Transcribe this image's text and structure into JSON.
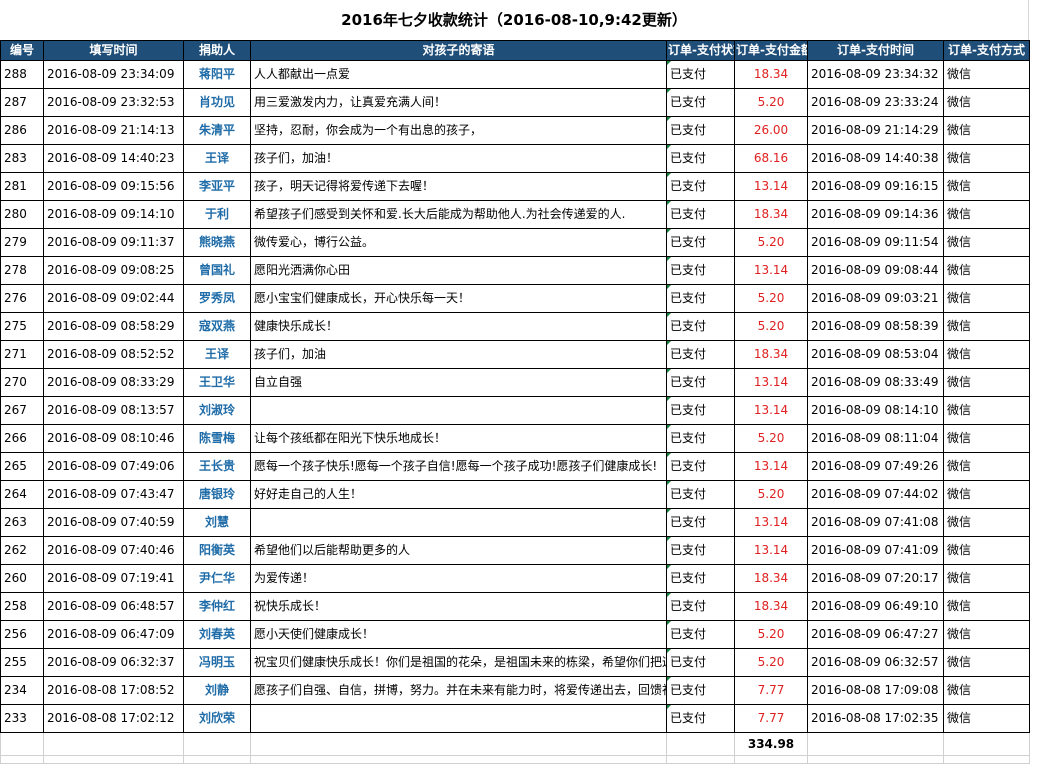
{
  "title": "2016年七夕收款统计（2016-08-10,9:42更新）",
  "columns": [
    "编号",
    "填写时间",
    "捐助人",
    "对孩子的寄语",
    "订单-支付状态",
    "订单-支付金额",
    "订单-支付时间",
    "订单-支付方式"
  ],
  "rows": [
    {
      "id": "288",
      "fill_time": "2016-08-09 23:34:09",
      "donor": "蒋阳平",
      "message": "人人都献出一点爱",
      "status": "已支付",
      "amount": "18.34",
      "pay_time": "2016-08-09 23:34:32",
      "method": "微信"
    },
    {
      "id": "287",
      "fill_time": "2016-08-09 23:32:53",
      "donor": "肖功见",
      "message": "用三爱激发内力，让真爱充满人间！",
      "status": "已支付",
      "amount": "5.20",
      "pay_time": "2016-08-09 23:33:24",
      "method": "微信"
    },
    {
      "id": "286",
      "fill_time": "2016-08-09 21:14:13",
      "donor": "朱清平",
      "message": "坚持，忍耐，你会成为一个有出息的孩子，",
      "status": "已支付",
      "amount": "26.00",
      "pay_time": "2016-08-09 21:14:29",
      "method": "微信"
    },
    {
      "id": "283",
      "fill_time": "2016-08-09 14:40:23",
      "donor": "王译",
      "message": "孩子们，加油！",
      "status": "已支付",
      "amount": "68.16",
      "pay_time": "2016-08-09 14:40:38",
      "method": "微信"
    },
    {
      "id": "281",
      "fill_time": "2016-08-09 09:15:56",
      "donor": "李亚平",
      "message": "孩子，明天记得将爱传递下去喔！",
      "status": "已支付",
      "amount": "13.14",
      "pay_time": "2016-08-09 09:16:15",
      "method": "微信"
    },
    {
      "id": "280",
      "fill_time": "2016-08-09 09:14:10",
      "donor": "于利",
      "message": "希望孩子们感受到关怀和爱.长大后能成为帮助他人.为社会传递爱的人.",
      "status": "已支付",
      "amount": "18.34",
      "pay_time": "2016-08-09 09:14:36",
      "method": "微信"
    },
    {
      "id": "279",
      "fill_time": "2016-08-09 09:11:37",
      "donor": "熊晓燕",
      "message": "微传爱心，博行公益。",
      "status": "已支付",
      "amount": "5.20",
      "pay_time": "2016-08-09 09:11:54",
      "method": "微信"
    },
    {
      "id": "278",
      "fill_time": "2016-08-09 09:08:25",
      "donor": "曾国礼",
      "message": "愿阳光洒满你心田",
      "status": "已支付",
      "amount": "13.14",
      "pay_time": "2016-08-09 09:08:44",
      "method": "微信"
    },
    {
      "id": "276",
      "fill_time": "2016-08-09 09:02:44",
      "donor": "罗秀凤",
      "message": "愿小宝宝们健康成长，开心快乐每一天！",
      "status": "已支付",
      "amount": "5.20",
      "pay_time": "2016-08-09 09:03:21",
      "method": "微信"
    },
    {
      "id": "275",
      "fill_time": "2016-08-09 08:58:29",
      "donor": "寇双燕",
      "message": "健康快乐成长！",
      "status": "已支付",
      "amount": "5.20",
      "pay_time": "2016-08-09 08:58:39",
      "method": "微信"
    },
    {
      "id": "271",
      "fill_time": "2016-08-09 08:52:52",
      "donor": "王译",
      "message": "孩子们，加油",
      "status": "已支付",
      "amount": "18.34",
      "pay_time": "2016-08-09 08:53:04",
      "method": "微信"
    },
    {
      "id": "270",
      "fill_time": "2016-08-09 08:33:29",
      "donor": "王卫华",
      "message": "自立自强",
      "status": "已支付",
      "amount": "13.14",
      "pay_time": "2016-08-09 08:33:49",
      "method": "微信"
    },
    {
      "id": "267",
      "fill_time": "2016-08-09 08:13:57",
      "donor": "刘淑玲",
      "message": "",
      "status": "已支付",
      "amount": "13.14",
      "pay_time": "2016-08-09 08:14:10",
      "method": "微信"
    },
    {
      "id": "266",
      "fill_time": "2016-08-09 08:10:46",
      "donor": "陈雪梅",
      "message": "让每个孩纸都在阳光下快乐地成长！",
      "status": "已支付",
      "amount": "5.20",
      "pay_time": "2016-08-09 08:11:04",
      "method": "微信"
    },
    {
      "id": "265",
      "fill_time": "2016-08-09 07:49:06",
      "donor": "王长贵",
      "message": "愿每一个孩子快乐!愿每一个孩子自信!愿每一个孩子成功!愿孩子们健康成长!",
      "status": "已支付",
      "amount": "13.14",
      "pay_time": "2016-08-09 07:49:26",
      "method": "微信"
    },
    {
      "id": "264",
      "fill_time": "2016-08-09 07:43:47",
      "donor": "唐银玲",
      "message": "好好走自己的人生！",
      "status": "已支付",
      "amount": "5.20",
      "pay_time": "2016-08-09 07:44:02",
      "method": "微信"
    },
    {
      "id": "263",
      "fill_time": "2016-08-09 07:40:59",
      "donor": "刘慧",
      "message": "",
      "status": "已支付",
      "amount": "13.14",
      "pay_time": "2016-08-09 07:41:08",
      "method": "微信"
    },
    {
      "id": "262",
      "fill_time": "2016-08-09 07:40:46",
      "donor": "阳衡英",
      "message": "希望他们以后能帮助更多的人",
      "status": "已支付",
      "amount": "13.14",
      "pay_time": "2016-08-09 07:41:09",
      "method": "微信"
    },
    {
      "id": "260",
      "fill_time": "2016-08-09 07:19:41",
      "donor": "尹仁华",
      "message": "为爱传递！",
      "status": "已支付",
      "amount": "18.34",
      "pay_time": "2016-08-09 07:20:17",
      "method": "微信"
    },
    {
      "id": "258",
      "fill_time": "2016-08-09 06:48:57",
      "donor": "李仲红",
      "message": "祝快乐成长！",
      "status": "已支付",
      "amount": "18.34",
      "pay_time": "2016-08-09 06:49:10",
      "method": "微信"
    },
    {
      "id": "256",
      "fill_time": "2016-08-09 06:47:09",
      "donor": "刘春英",
      "message": "愿小天使们健康成长！",
      "status": "已支付",
      "amount": "5.20",
      "pay_time": "2016-08-09 06:47:27",
      "method": "微信"
    },
    {
      "id": "255",
      "fill_time": "2016-08-09 06:32:37",
      "donor": "冯明玉",
      "message": "祝宝贝们健康快乐成长！你们是祖国的花朵，是祖国未来的栋梁，希望你们把这",
      "status": "已支付",
      "amount": "5.20",
      "pay_time": "2016-08-09 06:32:57",
      "method": "微信"
    },
    {
      "id": "234",
      "fill_time": "2016-08-08 17:08:52",
      "donor": "刘静",
      "message": "愿孩子们自强、自信，拼博，努力。并在未来有能力时，将爱传递出去，回馈社",
      "status": "已支付",
      "amount": "7.77",
      "pay_time": "2016-08-08 17:09:08",
      "method": "微信"
    },
    {
      "id": "233",
      "fill_time": "2016-08-08 17:02:12",
      "donor": "刘欣荣",
      "message": "",
      "status": "已支付",
      "amount": "7.77",
      "pay_time": "2016-08-08 17:02:35",
      "method": "微信"
    }
  ],
  "total_amount": "334.98"
}
